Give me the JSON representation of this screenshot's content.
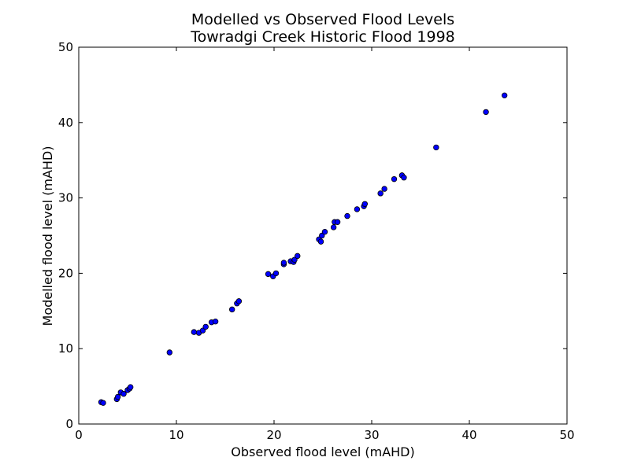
{
  "chart_data": {
    "type": "scatter",
    "title": [
      "Modelled vs Observed Flood Levels",
      "Towradgi Creek Historic Flood 1998"
    ],
    "xlabel": "Observed flood level (mAHD)",
    "ylabel": "Modelled flood level (mAHD)",
    "xlim": [
      0,
      50
    ],
    "ylim": [
      0,
      50
    ],
    "xticks": [
      "0",
      "10",
      "20",
      "30",
      "40",
      "50"
    ],
    "yticks": [
      "0",
      "10",
      "20",
      "30",
      "40",
      "50"
    ],
    "grid": false,
    "legend": "none",
    "marker_color": "#0000ff",
    "marker_edge": "#000000",
    "points": [
      [
        2.3,
        2.9
      ],
      [
        2.5,
        2.8
      ],
      [
        3.9,
        3.3
      ],
      [
        4.0,
        3.6
      ],
      [
        4.3,
        4.2
      ],
      [
        4.6,
        4.0
      ],
      [
        5.0,
        4.5
      ],
      [
        5.2,
        4.7
      ],
      [
        5.3,
        4.9
      ],
      [
        9.3,
        9.5
      ],
      [
        11.8,
        12.2
      ],
      [
        12.3,
        12.1
      ],
      [
        12.7,
        12.4
      ],
      [
        13.0,
        12.9
      ],
      [
        13.6,
        13.5
      ],
      [
        14.0,
        13.6
      ],
      [
        15.7,
        15.2
      ],
      [
        16.2,
        16.0
      ],
      [
        16.4,
        16.3
      ],
      [
        19.4,
        19.9
      ],
      [
        19.9,
        19.6
      ],
      [
        20.2,
        20.0
      ],
      [
        21.0,
        21.2
      ],
      [
        21.0,
        21.4
      ],
      [
        21.7,
        21.6
      ],
      [
        22.0,
        21.5
      ],
      [
        22.1,
        21.8
      ],
      [
        22.4,
        22.3
      ],
      [
        24.6,
        24.5
      ],
      [
        24.8,
        24.2
      ],
      [
        24.9,
        25.0
      ],
      [
        25.2,
        25.5
      ],
      [
        26.1,
        26.1
      ],
      [
        26.2,
        26.8
      ],
      [
        26.5,
        26.8
      ],
      [
        27.5,
        27.6
      ],
      [
        28.5,
        28.5
      ],
      [
        29.2,
        28.9
      ],
      [
        29.3,
        29.2
      ],
      [
        30.9,
        30.6
      ],
      [
        31.3,
        31.2
      ],
      [
        32.3,
        32.5
      ],
      [
        33.1,
        33.0
      ],
      [
        33.3,
        32.7
      ],
      [
        36.6,
        36.7
      ],
      [
        41.7,
        41.4
      ],
      [
        43.6,
        43.6
      ]
    ]
  }
}
